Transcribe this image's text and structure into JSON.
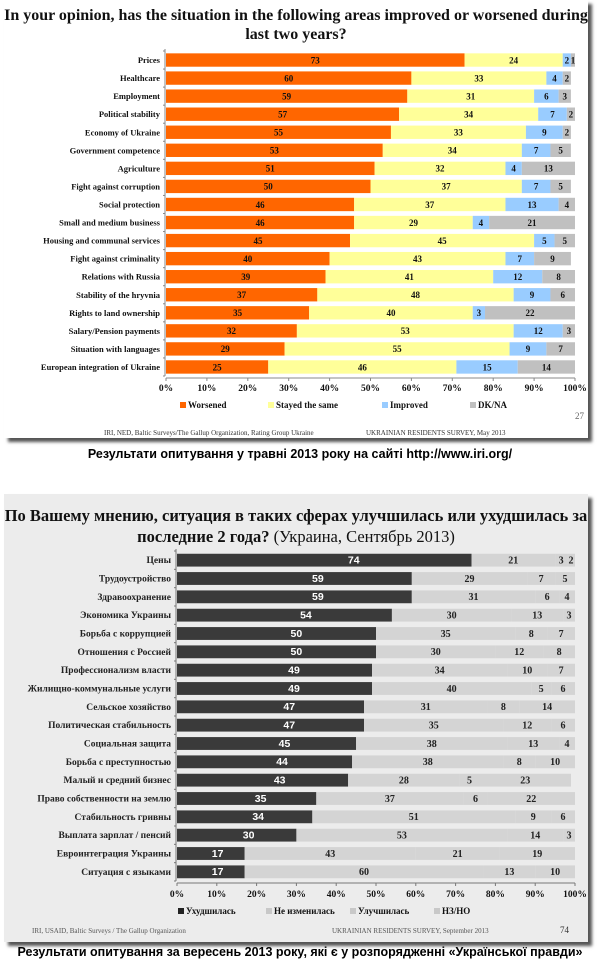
{
  "captions": {
    "first": "Результати опитування у травні 2013 року на сайті http://www.iri.org/",
    "second": "Результати опитування за вересень 2013 року, які є у розпорядженні «Української правди»"
  },
  "chart_data": [
    {
      "type": "bar",
      "orientation": "horizontal",
      "stacked": "percent",
      "title": "In your opinion, has the situation in the following areas improved or worsened during last two years?",
      "xlabel": "",
      "ylabel": "",
      "xlim": [
        0,
        100
      ],
      "x_ticks": [
        "0%",
        "10%",
        "20%",
        "30%",
        "40%",
        "50%",
        "60%",
        "70%",
        "80%",
        "90%",
        "100%"
      ],
      "legend_position": "bottom",
      "categories": [
        "Prices",
        "Healthcare",
        "Employment",
        "Political stability",
        "Economy of Ukraine",
        "Government competence",
        "Agriculture",
        "Fight against corruption",
        "Social protection",
        "Small and medium business",
        "Housing and communal services",
        "Fight against criminality",
        "Relations with Russia",
        "Stability of the hryvnia",
        "Rights to land ownership",
        "Salary/Pension payments",
        "Situation with languages",
        "European integration of Ukraine"
      ],
      "series": [
        {
          "name": "Worsened",
          "color": "#ff6600",
          "values": [
            73,
            60,
            59,
            57,
            55,
            53,
            51,
            50,
            46,
            46,
            45,
            40,
            39,
            37,
            35,
            32,
            29,
            25
          ]
        },
        {
          "name": "Stayed the same",
          "color": "#ffff99",
          "values": [
            24,
            33,
            31,
            34,
            33,
            34,
            32,
            37,
            37,
            29,
            45,
            43,
            41,
            48,
            40,
            53,
            55,
            46
          ]
        },
        {
          "name": "Improved",
          "color": "#99ccff",
          "values": [
            2,
            4,
            6,
            7,
            9,
            7,
            4,
            7,
            13,
            4,
            5,
            7,
            12,
            9,
            3,
            12,
            9,
            15
          ]
        },
        {
          "name": "DK/NA",
          "color": "#c0c0c0",
          "values": [
            1,
            2,
            3,
            2,
            2,
            5,
            13,
            5,
            4,
            21,
            5,
            9,
            8,
            6,
            22,
            3,
            7,
            14
          ]
        }
      ],
      "footer_left": "IRI, NED,  Baltic Surveys/The Gallup Organization, Rating Group Ukraine",
      "footer_right": "UKRAINIAN RESIDENTS SURVEY, May  2013",
      "page_number": "27"
    },
    {
      "type": "bar",
      "orientation": "horizontal",
      "stacked": "percent",
      "title": "По Вашему мнению, ситуация в таких сферах улучшилась или ухудшилась за последние 2 года?",
      "subtitle": "(Украина, Сентябрь 2013)",
      "xlabel": "",
      "ylabel": "",
      "xlim": [
        0,
        100
      ],
      "x_ticks": [
        "0%",
        "10%",
        "20%",
        "30%",
        "40%",
        "50%",
        "60%",
        "70%",
        "80%",
        "90%",
        "100%"
      ],
      "legend_position": "bottom",
      "categories": [
        "Цены",
        "Трудоустройство",
        "Здравоохранение",
        "Экономика Украины",
        "Борьба с коррупцией",
        "Отношения с Россией",
        "Профессионализм власти",
        "Жилищно-коммунальные услуги",
        "Сельское хозяйство",
        "Политическая стабильность",
        "Социальная защита",
        "Борьба с преступностью",
        "Малый и средний бизнес",
        "Право собственности на землю",
        "Стабильность гривны",
        "Выплата зарплат / пенсий",
        "Евроинтеграция Украины",
        "Ситуация с языками"
      ],
      "series": [
        {
          "name": "Ухудшилась",
          "color": "#3a3a3a",
          "values": [
            74,
            59,
            59,
            54,
            50,
            50,
            49,
            49,
            47,
            47,
            45,
            44,
            43,
            35,
            34,
            30,
            17,
            17
          ]
        },
        {
          "name": "Не изменилась",
          "color": "#d4d4d4",
          "values": [
            21,
            29,
            31,
            30,
            35,
            30,
            34,
            40,
            31,
            35,
            38,
            38,
            28,
            37,
            51,
            53,
            43,
            60
          ]
        },
        {
          "name": "Улучшилась",
          "color": "#d4d4d4",
          "values": [
            3,
            7,
            6,
            13,
            8,
            12,
            10,
            5,
            8,
            12,
            13,
            8,
            5,
            6,
            9,
            14,
            21,
            13
          ]
        },
        {
          "name": "НЗ/НО",
          "color": "#d4d4d4",
          "values": [
            2,
            5,
            4,
            3,
            7,
            8,
            7,
            6,
            14,
            6,
            4,
            10,
            23,
            22,
            6,
            3,
            19,
            10
          ]
        }
      ],
      "footer_left": "IRI, USAID,  Baltic Surveys / The Gallup Organization",
      "footer_right": "UKRAINIAN RESIDENTS SURVEY, September 2013",
      "page_number": "74"
    }
  ]
}
